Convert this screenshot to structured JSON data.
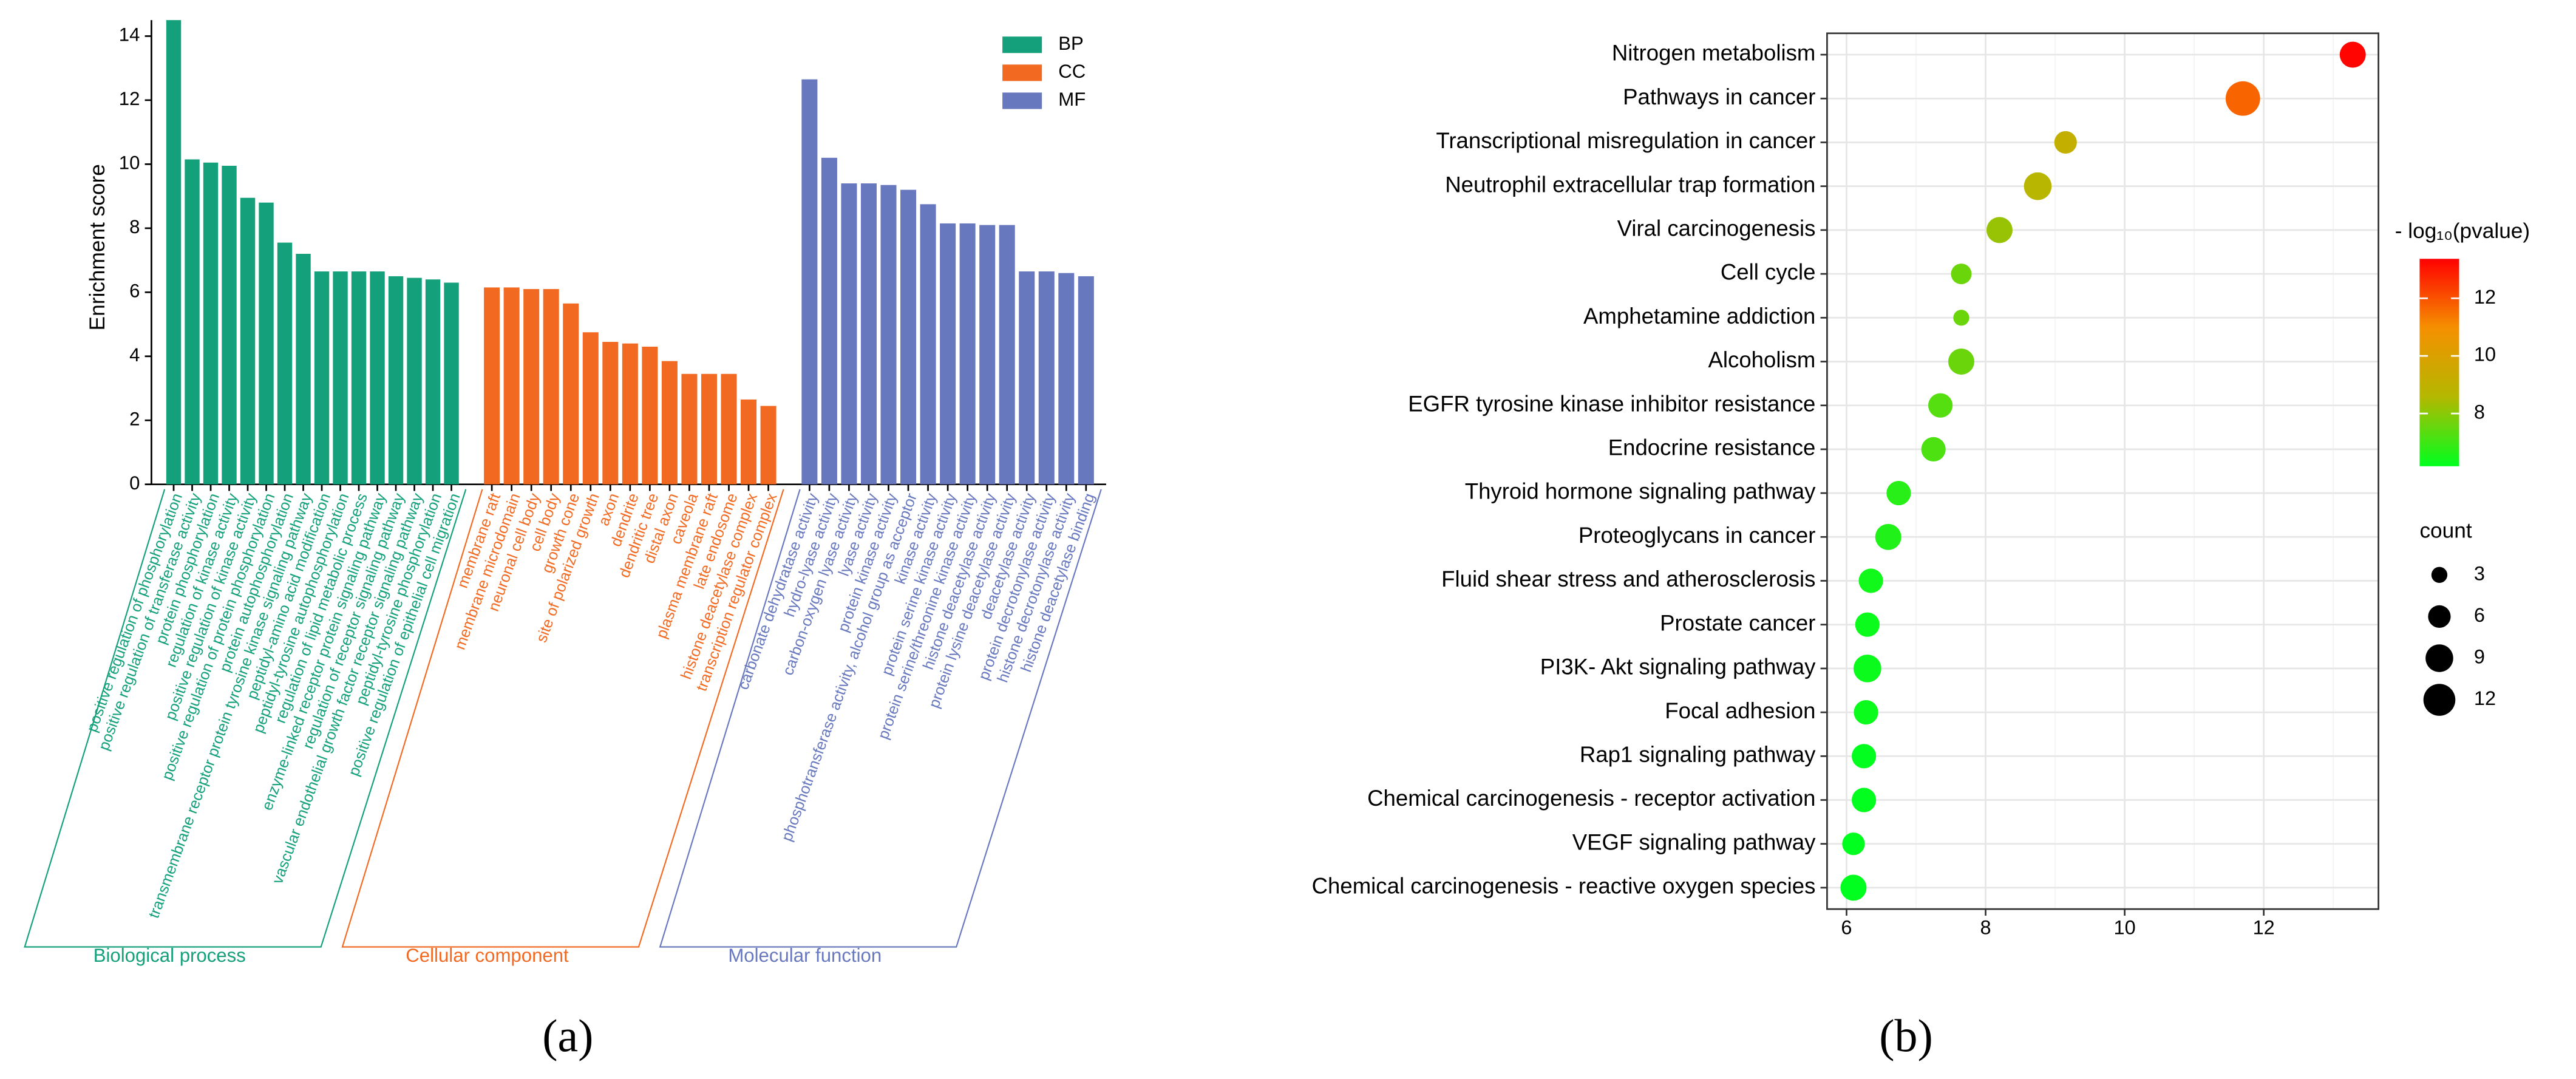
{
  "chart_data": [
    {
      "type": "bar",
      "label": "(a)",
      "ylabel": "Enrichment score",
      "ylim": [
        0,
        14.5
      ],
      "yticks": [
        0,
        2,
        4,
        6,
        8,
        10,
        12,
        14
      ],
      "legend": "upper right",
      "series": [
        {
          "name": "BP",
          "group_label": "Biological process",
          "color": "#13a07a",
          "categories": [
            "positive regulation of phosphorylation",
            "positive regulation of transferase activity",
            "protein phosphorylation",
            "regulation of kinase activity",
            "positive regulation of kinase activity",
            "positive regulation of protein phosphorylation",
            "protein autophosphorylation",
            "transmembrane receptor protein tyrosine kinase signaling pathway",
            "peptidyl-amino acid modification",
            "peptidyl-tyrosine autophosphorylation",
            "regulation of lipid metabolic process",
            "enzyme-linked receptor protein signaling pathway",
            "regulation of receptor signaling pathway",
            "vascular endothelial growth factor receptor signaling pathway",
            "peptidyl-tyrosine phosphorylation",
            "positive regulation of epithelial cell migration"
          ],
          "values": [
            14.5,
            10.15,
            10.05,
            9.95,
            8.95,
            8.8,
            7.55,
            7.2,
            6.65,
            6.65,
            6.65,
            6.65,
            6.5,
            6.45,
            6.4,
            6.3
          ]
        },
        {
          "name": "CC",
          "group_label": "Cellular component",
          "color": "#f26a22",
          "categories": [
            "membrane raft",
            "membrane microdomain",
            "neuronal cell body",
            "cell body",
            "growth cone",
            "site of polarized growth",
            "axon",
            "dendrite",
            "dendritic tree",
            "distal axon",
            "caveola",
            "plasma membrane raft",
            "late endosome",
            "histone deacetylase complex",
            "transcription regulator complex"
          ],
          "values": [
            6.15,
            6.15,
            6.1,
            6.1,
            5.65,
            4.75,
            4.45,
            4.4,
            4.3,
            3.85,
            3.45,
            3.45,
            3.45,
            2.65,
            2.45
          ]
        },
        {
          "name": "MF",
          "group_label": "Molecular function",
          "color": "#6878bf",
          "categories": [
            "carbonate dehydratase activity",
            "hydro-lyase activity",
            "carbon-oxygen lyase activity",
            "lyase activity",
            "protein kinase activity",
            "phosphotransferase activity, alcohol group as acceptor",
            "kinase activity",
            "protein serine kinase activity",
            "protein serine/threonine kinase activity",
            "histone deacetylase activity",
            "protein lysine deacetylase activity",
            "deacetylase activity",
            "protein decrotonylase activity",
            "histone decrotonylase activity",
            "histone deacetylase binding"
          ],
          "values": [
            12.65,
            10.2,
            9.4,
            9.4,
            9.35,
            9.2,
            8.75,
            8.15,
            8.15,
            8.1,
            8.1,
            6.65,
            6.65,
            6.6,
            6.5
          ]
        }
      ]
    },
    {
      "type": "scatter",
      "label": "(b)",
      "categories": [
        "Nitrogen metabolism",
        "Pathways in cancer",
        "Transcriptional misregulation in cancer",
        "Neutrophil extracellular trap formation",
        "Viral carcinogenesis",
        "Cell cycle",
        "Amphetamine addiction",
        "Alcoholism",
        "EGFR tyrosine kinase inhibitor resistance",
        "Endocrine resistance",
        "Thyroid hormone signaling pathway",
        "Proteoglycans in cancer",
        "Fluid shear stress and atherosclerosis",
        "Prostate cancer",
        "PI3K- Akt signaling pathway",
        "Focal adhesion",
        "Rap1 signaling pathway",
        "Chemical carcinogenesis -  receptor activation",
        "VEGF signaling pathway",
        "Chemical carcinogenesis -  reactive oxygen species"
      ],
      "values": [
        13.28,
        11.7,
        9.15,
        8.75,
        8.2,
        7.65,
        7.65,
        7.65,
        7.35,
        7.25,
        6.75,
        6.6,
        6.35,
        6.3,
        6.3,
        6.28,
        6.25,
        6.25,
        6.1,
        6.1
      ],
      "sizes": [
        8,
        14,
        6,
        9,
        8,
        5,
        3,
        8,
        7,
        7,
        7,
        8,
        7,
        7,
        9,
        7,
        7,
        7,
        6,
        8
      ],
      "color_values": [
        13.3,
        11.7,
        9.1,
        8.7,
        8.2,
        7.6,
        7.6,
        7.6,
        7.3,
        7.2,
        6.7,
        6.6,
        6.4,
        6.3,
        6.3,
        6.3,
        6.2,
        6.2,
        6.1,
        6.1
      ],
      "xlim": [
        5.72,
        13.65
      ],
      "xticks": [
        6,
        8,
        10,
        12
      ],
      "xminor": [
        7,
        9,
        11,
        13
      ],
      "grid": true,
      "color_title": "- log₁₀(pvalue)",
      "clim": [
        6.17,
        13.37
      ],
      "cticks": [
        8,
        10,
        12
      ],
      "colormap": [
        "#00ff1e",
        "#b4b800",
        "#f59000",
        "#ff0000"
      ],
      "size_title": "count",
      "size_ticks": [
        3,
        6,
        9,
        12
      ]
    }
  ]
}
